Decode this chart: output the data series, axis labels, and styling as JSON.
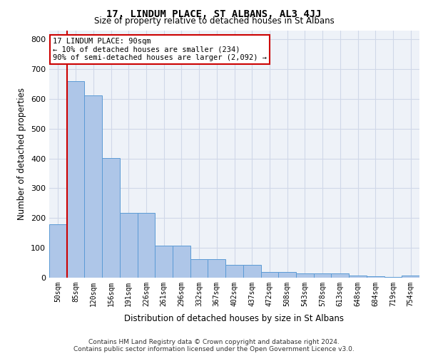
{
  "title": "17, LINDUM PLACE, ST ALBANS, AL3 4JJ",
  "subtitle": "Size of property relative to detached houses in St Albans",
  "xlabel": "Distribution of detached houses by size in St Albans",
  "ylabel": "Number of detached properties",
  "bar_labels": [
    "50sqm",
    "85sqm",
    "120sqm",
    "156sqm",
    "191sqm",
    "226sqm",
    "261sqm",
    "296sqm",
    "332sqm",
    "367sqm",
    "402sqm",
    "437sqm",
    "472sqm",
    "508sqm",
    "543sqm",
    "578sqm",
    "613sqm",
    "648sqm",
    "684sqm",
    "719sqm",
    "754sqm"
  ],
  "bar_values": [
    178,
    660,
    612,
    401,
    218,
    218,
    108,
    108,
    62,
    62,
    43,
    43,
    19,
    19,
    14,
    14,
    14,
    8,
    4,
    3,
    7
  ],
  "bar_color": "#aec6e8",
  "bar_edge_color": "#5b9bd5",
  "vline_color": "#cc0000",
  "vline_x_index": 1,
  "annotation_text": "17 LINDUM PLACE: 90sqm\n← 10% of detached houses are smaller (234)\n90% of semi-detached houses are larger (2,092) →",
  "annotation_box_color": "#ffffff",
  "annotation_box_edge": "#cc0000",
  "ylim": [
    0,
    830
  ],
  "yticks": [
    0,
    100,
    200,
    300,
    400,
    500,
    600,
    700,
    800
  ],
  "grid_color": "#d0d8e8",
  "bg_color": "#eef2f8",
  "footer_line1": "Contains HM Land Registry data © Crown copyright and database right 2024.",
  "footer_line2": "Contains public sector information licensed under the Open Government Licence v3.0."
}
